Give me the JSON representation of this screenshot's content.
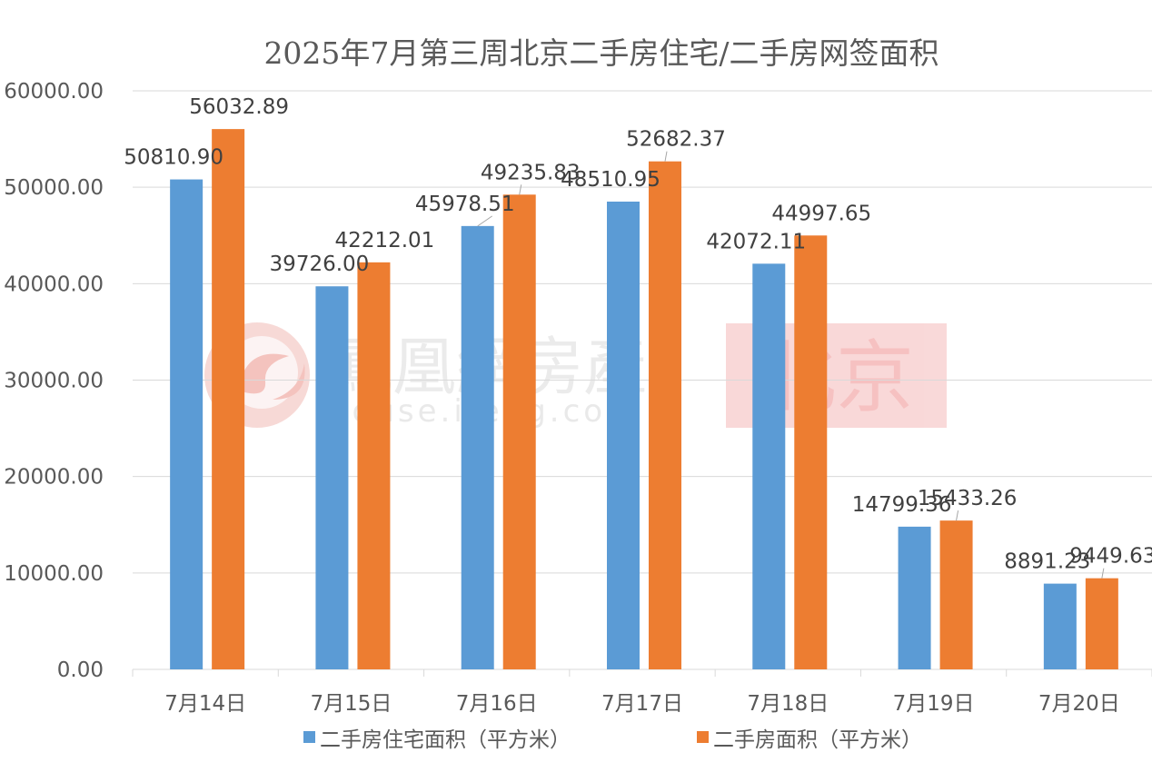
{
  "chart_data": {
    "type": "bar",
    "title": "2025年7月第三周北京二手房住宅/二手房网签面积",
    "categories": [
      "7月14日",
      "7月15日",
      "7月16日",
      "7月17日",
      "7月18日",
      "7月19日",
      "7月20日"
    ],
    "series": [
      {
        "name": "二手房住宅面积（平方米）",
        "color": "#5B9BD5",
        "values": [
          50810.9,
          39726.0,
          45978.51,
          48510.95,
          42072.11,
          14799.36,
          8891.23
        ],
        "labels": [
          "50810.90",
          "39726.00",
          "45978.51",
          "48510.95",
          "42072.11",
          "14799.36",
          "8891.23"
        ]
      },
      {
        "name": "二手房面积（平方米）",
        "color": "#ED7D31",
        "values": [
          56032.89,
          42212.01,
          49235.83,
          52682.37,
          44997.65,
          15433.26,
          9449.63
        ],
        "labels": [
          "56032.89",
          "42212.01",
          "49235.83",
          "52682.37",
          "44997.65",
          "15433.26",
          "9449.63"
        ]
      }
    ],
    "ylim": [
      0,
      60000
    ],
    "yticks": [
      "0.00",
      "10000.00",
      "20000.00",
      "30000.00",
      "40000.00",
      "50000.00",
      "60000.00"
    ],
    "grid": true,
    "legend_position": "bottom"
  },
  "watermark": {
    "brand": "鳳凰網房產",
    "url": "house.ifeng.com",
    "city": "北京"
  }
}
